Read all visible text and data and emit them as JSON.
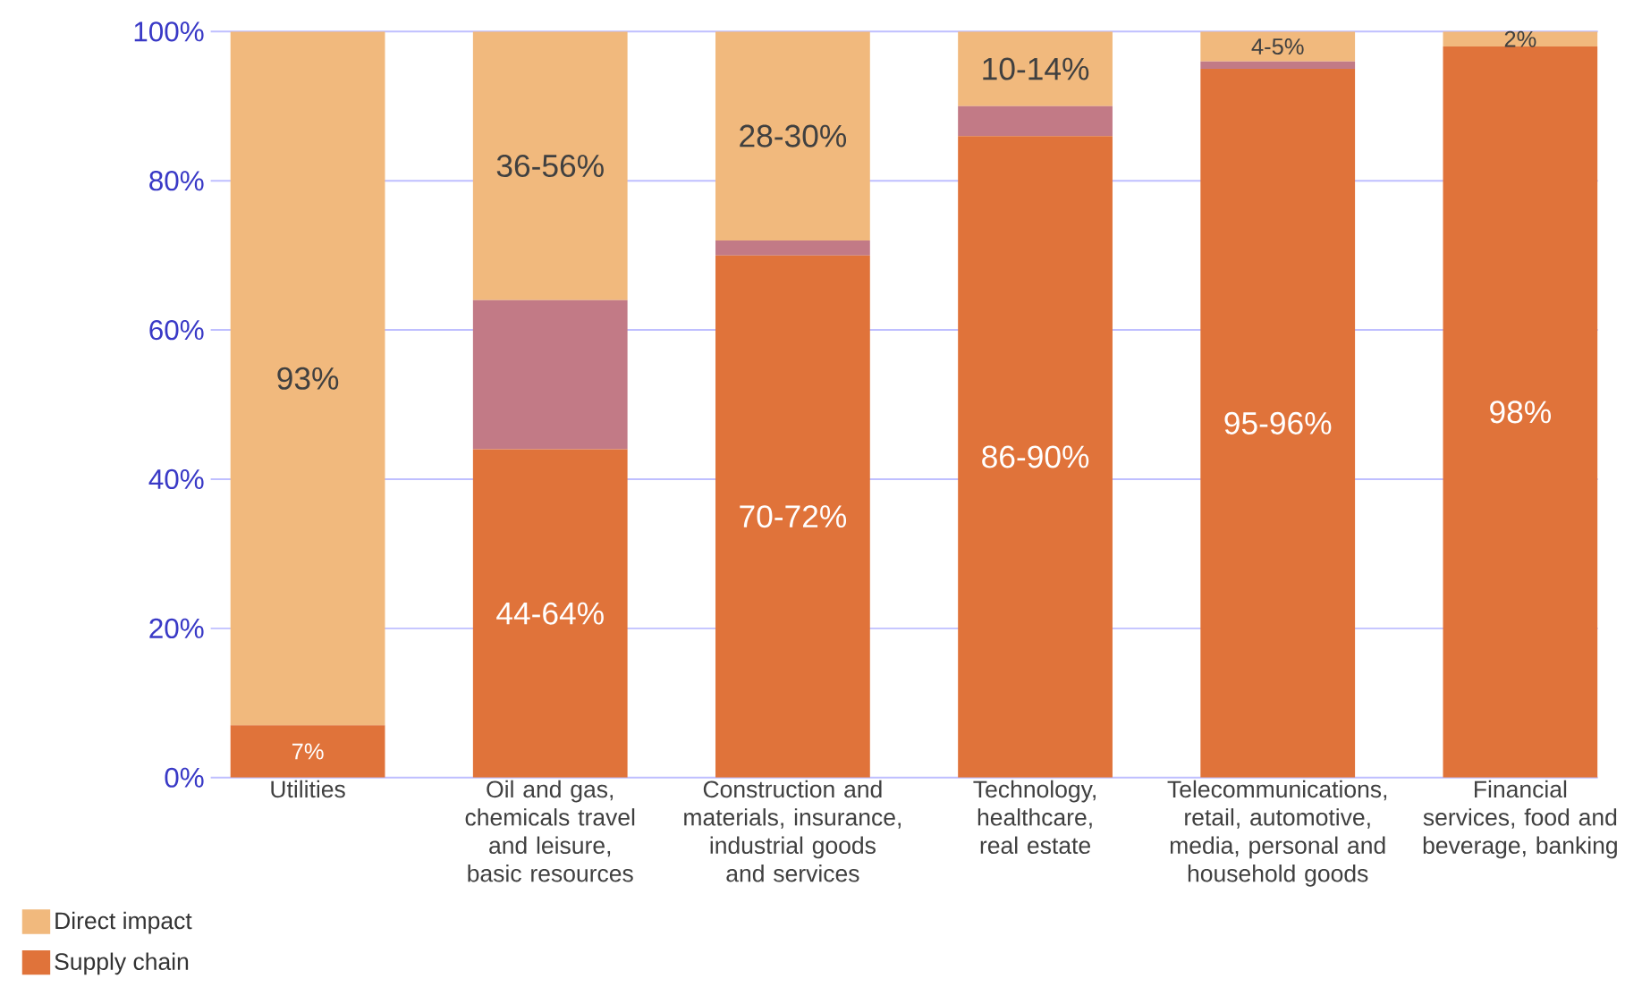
{
  "chart_data": {
    "type": "bar",
    "stacked": true,
    "categories": [
      "Utilities",
      "Oil and gas, chemicals travel and leisure, basic resources",
      "Construction and materials, insurance, industrial goods and services",
      "Technology, healthcare, real estate",
      "Telecommunications, retail, automotive, media, personal and household goods",
      "Financial services, food and beverage, banking"
    ],
    "series": [
      {
        "name": "Supply chain",
        "color": "#e0733a",
        "values": [
          7,
          44,
          70,
          86,
          95,
          98
        ],
        "value_labels": [
          "7%",
          "44-64%",
          "70-72%",
          "86-90%",
          "95-96%",
          "98%"
        ]
      },
      {
        "color": "#c27a86",
        "values": [
          0,
          20,
          2,
          4,
          1,
          0
        ]
      },
      {
        "name": "Direct impact",
        "color": "#f1b97d",
        "values": [
          93,
          36,
          28,
          10,
          4,
          2
        ],
        "value_labels": [
          "93%",
          "36-56%",
          "28-30%",
          "10-14%",
          "4-5%",
          "2%"
        ]
      }
    ],
    "ylim": [
      0,
      100
    ],
    "yticks": [
      {
        "value": 0,
        "label": "0%"
      },
      {
        "value": 20,
        "label": "20%"
      },
      {
        "value": 40,
        "label": "40%"
      },
      {
        "value": 60,
        "label": "60%"
      },
      {
        "value": 80,
        "label": "80%"
      },
      {
        "value": 100,
        "label": "100%"
      }
    ],
    "grid": "y",
    "legend": "bottom left"
  }
}
